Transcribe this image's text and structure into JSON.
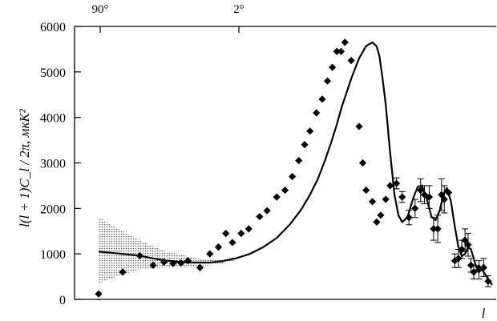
{
  "chart_data": {
    "type": "scatter",
    "title": "",
    "xlabel": "l",
    "ylabel": "l(l + 1)C_l / 2π, мкК²",
    "x_scale": "log",
    "xlim": [
      2,
      1500
    ],
    "ylim": [
      0,
      6000
    ],
    "yticks": [
      0,
      1000,
      2000,
      3000,
      4000,
      5000,
      6000
    ],
    "ytick_labels": [
      "0",
      "1000",
      "2000",
      "3000",
      "4000",
      "5000",
      "6000"
    ],
    "top_axis": {
      "ticks": [
        2,
        90
      ],
      "labels": [
        "90°",
        "2°"
      ]
    },
    "grid": false,
    "legend": "none",
    "colors": {
      "points": "#000000",
      "band": "#9a9a9a",
      "curve": "#000000"
    },
    "series": [
      {
        "kind": "line",
        "x": [
          2,
          3,
          4,
          5,
          6,
          8,
          10,
          13,
          16,
          20,
          25,
          32,
          40,
          50,
          60,
          70,
          80,
          90,
          100,
          110,
          120,
          140,
          160,
          180,
          200,
          215,
          225,
          235,
          250,
          270,
          290,
          310,
          330,
          360,
          400,
          430,
          460,
          500,
          540,
          580,
          620,
          660,
          700,
          750,
          800,
          850,
          900,
          950,
          1000,
          1050,
          1100,
          1150,
          1200,
          1300,
          1400,
          1500
        ],
        "y": [
          1050,
          1000,
          960,
          900,
          860,
          820,
          810,
          810,
          840,
          900,
          990,
          1150,
          1350,
          1650,
          1960,
          2300,
          2650,
          3050,
          3450,
          3850,
          4250,
          4850,
          5300,
          5570,
          5650,
          5560,
          5350,
          4950,
          4300,
          3200,
          2300,
          1850,
          1700,
          1800,
          2250,
          2480,
          2500,
          2200,
          1820,
          1740,
          1950,
          2300,
          2450,
          2150,
          1600,
          1150,
          950,
          1000,
          1150,
          1100,
          900,
          700,
          750,
          600,
          450,
          320
        ]
      },
      {
        "kind": "band",
        "x": [
          2,
          3,
          4,
          5,
          6,
          8,
          10,
          13,
          16,
          20
        ],
        "upper": [
          1800,
          1500,
          1300,
          1170,
          1070,
          980,
          920,
          880,
          880,
          920
        ],
        "lower": [
          350,
          550,
          650,
          690,
          700,
          720,
          730,
          750,
          790,
          860
        ]
      },
      {
        "kind": "points",
        "marker": "diamond-filled",
        "x": [
          2,
          3,
          4,
          5,
          6,
          7,
          8,
          9,
          11,
          13,
          15,
          17,
          19,
          22,
          25,
          30,
          34,
          40,
          46,
          52,
          58,
          64,
          70,
          78,
          86,
          94,
          102,
          110,
          118,
          126,
          140,
          160,
          170,
          180,
          200,
          215,
          230,
          250,
          270,
          300,
          330,
          370,
          410,
          450,
          480,
          520,
          560,
          600,
          640,
          670,
          720,
          800,
          850,
          900,
          950,
          1000,
          1050,
          1100,
          1200,
          1300,
          1400
        ],
        "y": [
          120,
          600,
          960,
          750,
          820,
          790,
          800,
          850,
          700,
          1000,
          1150,
          1450,
          1250,
          1450,
          1550,
          1820,
          1950,
          2250,
          2400,
          2700,
          3050,
          3400,
          3700,
          4100,
          4400,
          4800,
          5100,
          5450,
          5450,
          5650,
          5250,
          3800,
          3000,
          2400,
          2150,
          1700,
          1850,
          2200,
          2500,
          2550,
          2250,
          1800,
          2000,
          2400,
          2300,
          2250,
          1550,
          1550,
          2300,
          2200,
          2350,
          850,
          900,
          1100,
          1300,
          1200,
          750,
          600,
          650,
          700,
          400
        ],
        "errors": [
          0,
          0,
          0,
          0,
          0,
          0,
          0,
          0,
          0,
          0,
          0,
          0,
          0,
          0,
          0,
          0,
          0,
          0,
          0,
          0,
          0,
          0,
          0,
          0,
          0,
          0,
          0,
          0,
          0,
          0,
          0,
          0,
          0,
          0,
          0,
          0,
          0,
          0,
          0,
          120,
          120,
          160,
          200,
          250,
          200,
          250,
          250,
          300,
          350,
          300,
          0,
          150,
          200,
          200,
          250,
          250,
          150,
          150,
          200,
          200,
          120
        ]
      }
    ]
  }
}
